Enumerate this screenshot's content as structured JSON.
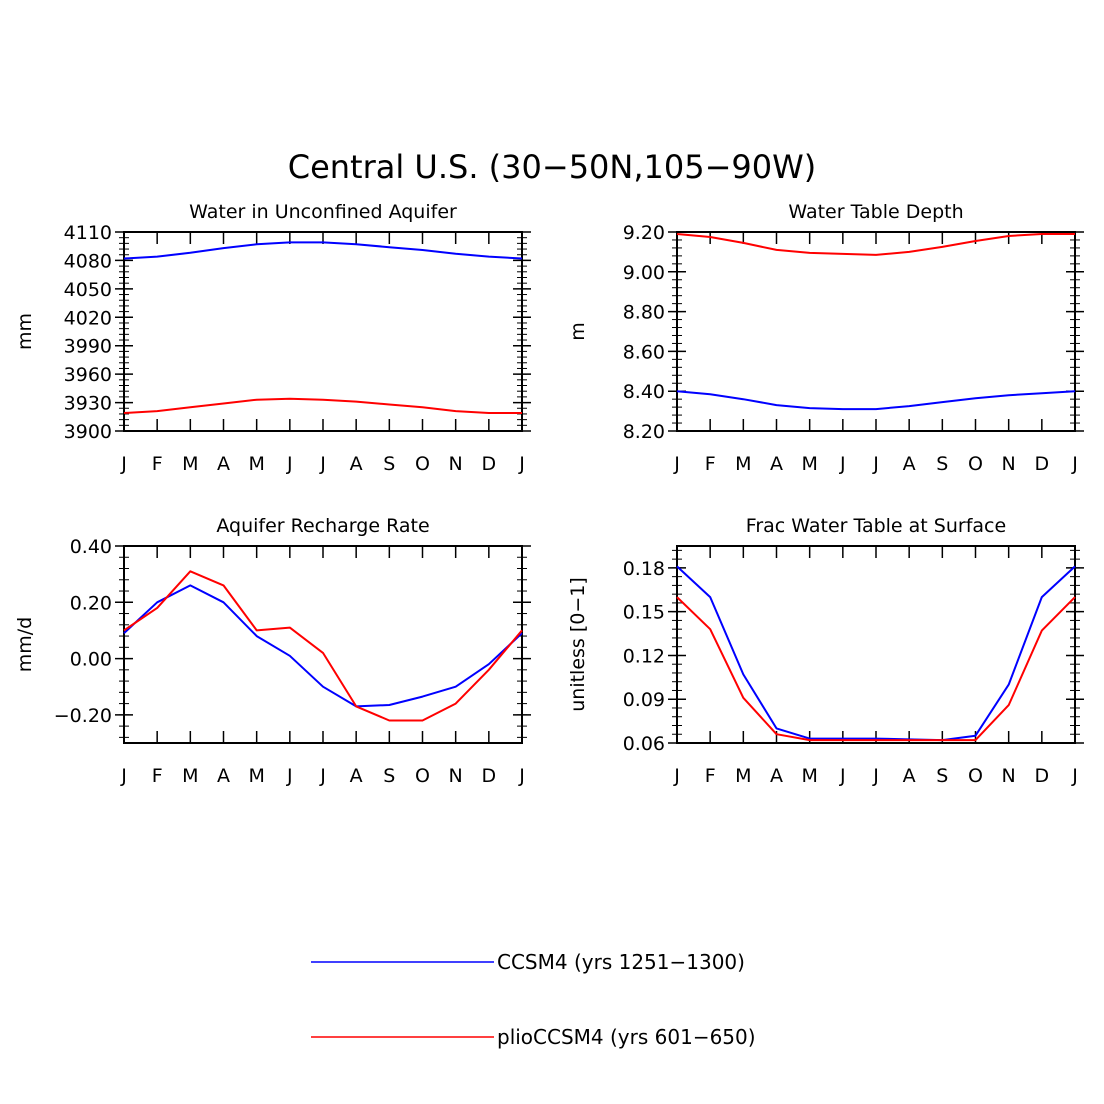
{
  "figure": {
    "title": "Central U.S. (30−50N,105−90W)"
  },
  "legend": [
    {
      "label": "CCSM4 (yrs 1251−1300)",
      "color": "#0000ff"
    },
    {
      "label": "plioCCSM4 (yrs 601−650)",
      "color": "#ff0000"
    }
  ],
  "chart_data": [
    {
      "type": "line",
      "title": "Water in Unconfined Aquifer",
      "ylabel": "mm",
      "xlabel": "",
      "categories": [
        "J",
        "F",
        "M",
        "A",
        "M",
        "J",
        "J",
        "A",
        "S",
        "O",
        "N",
        "D",
        "J"
      ],
      "ylim": [
        3900,
        4110
      ],
      "yticks": [
        3900,
        3930,
        3960,
        3990,
        4020,
        4050,
        4080,
        4110
      ],
      "ytick_labels": [
        "3900",
        "3930",
        "3960",
        "3990",
        "4020",
        "4050",
        "4080",
        "4110"
      ],
      "series": [
        {
          "name": "CCSM4 (yrs 1251−1300)",
          "color": "#0000ff",
          "values": [
            4082,
            4084,
            4088,
            4093,
            4097,
            4099,
            4099,
            4097,
            4094,
            4091,
            4087,
            4084,
            4082
          ]
        },
        {
          "name": "plioCCSM4 (yrs 601−650)",
          "color": "#ff0000",
          "values": [
            3919,
            3921,
            3925,
            3929,
            3933,
            3934,
            3933,
            3931,
            3928,
            3925,
            3921,
            3919,
            3919
          ]
        }
      ]
    },
    {
      "type": "line",
      "title": "Water Table Depth",
      "ylabel": "m",
      "xlabel": "",
      "categories": [
        "J",
        "F",
        "M",
        "A",
        "M",
        "J",
        "J",
        "A",
        "S",
        "O",
        "N",
        "D",
        "J"
      ],
      "ylim": [
        8.2,
        9.2
      ],
      "yticks": [
        8.2,
        8.4,
        8.6,
        8.8,
        9.0,
        9.2
      ],
      "ytick_labels": [
        "8.20",
        "8.40",
        "8.60",
        "8.80",
        "9.00",
        "9.20"
      ],
      "series": [
        {
          "name": "CCSM4 (yrs 1251−1300)",
          "color": "#0000ff",
          "values": [
            8.4,
            8.385,
            8.36,
            8.33,
            8.315,
            8.31,
            8.31,
            8.325,
            8.345,
            8.365,
            8.38,
            8.39,
            8.4
          ]
        },
        {
          "name": "plioCCSM4 (yrs 601−650)",
          "color": "#ff0000",
          "values": [
            9.19,
            9.175,
            9.145,
            9.11,
            9.095,
            9.09,
            9.085,
            9.1,
            9.125,
            9.155,
            9.18,
            9.19,
            9.19
          ]
        }
      ]
    },
    {
      "type": "line",
      "title": "Aquifer Recharge Rate",
      "ylabel": "mm/d",
      "xlabel": "",
      "categories": [
        "J",
        "F",
        "M",
        "A",
        "M",
        "J",
        "J",
        "A",
        "S",
        "O",
        "N",
        "D",
        "J"
      ],
      "ylim": [
        -0.3,
        0.4
      ],
      "yticks": [
        -0.2,
        0.0,
        0.2,
        0.4
      ],
      "ytick_labels": [
        "−0.20",
        "0.00",
        "0.20",
        "0.40"
      ],
      "series": [
        {
          "name": "CCSM4 (yrs 1251−1300)",
          "color": "#0000ff",
          "values": [
            0.09,
            0.2,
            0.26,
            0.2,
            0.08,
            0.01,
            -0.1,
            -0.17,
            -0.165,
            -0.135,
            -0.1,
            -0.02,
            0.09
          ]
        },
        {
          "name": "plioCCSM4 (yrs 601−650)",
          "color": "#ff0000",
          "values": [
            0.1,
            0.18,
            0.31,
            0.26,
            0.1,
            0.11,
            0.02,
            -0.17,
            -0.22,
            -0.22,
            -0.16,
            -0.04,
            0.1
          ]
        }
      ]
    },
    {
      "type": "line",
      "title": "Frac Water Table at Surface",
      "ylabel": "unitless [0−1]",
      "xlabel": "",
      "categories": [
        "J",
        "F",
        "M",
        "A",
        "M",
        "J",
        "J",
        "A",
        "S",
        "O",
        "N",
        "D",
        "J"
      ],
      "ylim": [
        0.06,
        0.195
      ],
      "yticks": [
        0.06,
        0.09,
        0.12,
        0.15,
        0.18
      ],
      "ytick_labels": [
        "0.06",
        "0.09",
        "0.12",
        "0.15",
        "0.18"
      ],
      "series": [
        {
          "name": "CCSM4 (yrs 1251−1300)",
          "color": "#0000ff",
          "values": [
            0.181,
            0.16,
            0.107,
            0.07,
            0.063,
            0.063,
            0.063,
            0.0625,
            0.062,
            0.065,
            0.1,
            0.16,
            0.181
          ]
        },
        {
          "name": "plioCCSM4 (yrs 601−650)",
          "color": "#ff0000",
          "values": [
            0.16,
            0.138,
            0.091,
            0.066,
            0.062,
            0.062,
            0.062,
            0.062,
            0.062,
            0.062,
            0.086,
            0.137,
            0.16
          ]
        }
      ]
    }
  ]
}
